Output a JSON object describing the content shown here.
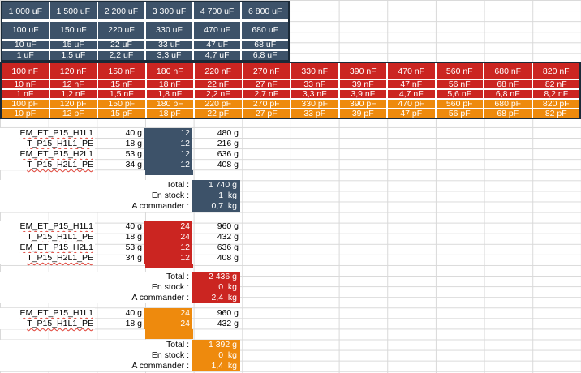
{
  "colors": {
    "navy": "#3D5269",
    "red": "#CB2521",
    "orange": "#EE8A0D",
    "table_border": "#1B2A38",
    "grid_line": "#D9D9D9",
    "squiggle": "#E04338",
    "light_text": "#FFFFFF",
    "dark_text": "#000000"
  },
  "capacitor_table_uf": {
    "style": "navy",
    "rows": [
      [
        "1 000 uF",
        "1 500 uF",
        "2 200 uF",
        "3 300 uF",
        "4 700 uF",
        "6 800 uF"
      ],
      [
        "100 uF",
        "150 uF",
        "220 uF",
        "330 uF",
        "470 uF",
        "680 uF"
      ],
      [
        "10 uF",
        "15 uF",
        "22 uF",
        "33 uF",
        "47 uF",
        "68 uF"
      ],
      [
        "1 uF",
        "1,5 uF",
        "2,2 uF",
        "3,3 uF",
        "4,7 uF",
        "6,8 uF"
      ]
    ]
  },
  "capacitor_table_nf_pf": {
    "row_styles": [
      "red",
      "red",
      "red",
      "orange",
      "orange"
    ],
    "rows": [
      [
        "100 nF",
        "120 nF",
        "150 nF",
        "180 nF",
        "220 nF",
        "270 nF",
        "330 nF",
        "390 nF",
        "470 nF",
        "560 nF",
        "680 nF",
        "820 nF"
      ],
      [
        "10 nF",
        "12 nF",
        "15 nF",
        "18 nF",
        "22 nF",
        "27 nF",
        "33 nF",
        "39 nF",
        "47 nF",
        "56 nF",
        "68 nF",
        "82 nF"
      ],
      [
        "1 nF",
        "1,2 nF",
        "1,5 nF",
        "1,8 nF",
        "2,2 nF",
        "2,7 nF",
        "3,3 nF",
        "3,9 nF",
        "4,7 nF",
        "5,6 nF",
        "6,8 nF",
        "8,2 nF"
      ],
      [
        "100 pF",
        "120 pF",
        "150 pF",
        "180 pF",
        "220 pF",
        "270 pF",
        "330 pF",
        "390 pF",
        "470 pF",
        "560 pF",
        "680 pF",
        "820 pF"
      ],
      [
        "10 pF",
        "12 pF",
        "15 pF",
        "18 pF",
        "22 pF",
        "27 pF",
        "33 pF",
        "39 pF",
        "47 pF",
        "56 pF",
        "68 pF",
        "82 pF"
      ]
    ]
  },
  "groups": [
    {
      "id": "group-1",
      "color": "navy",
      "parts": [
        {
          "name": "EM_ET_P15_H1L1",
          "unit_weight": "40 g",
          "qty": "12",
          "total_weight": "480 g"
        },
        {
          "name": "T_P15_H1L1_PE",
          "unit_weight": "18 g",
          "qty": "12",
          "total_weight": "216 g"
        },
        {
          "name": "EM_ET_P15_H2L1",
          "unit_weight": "53 g",
          "qty": "12",
          "total_weight": "636 g"
        },
        {
          "name": "T_P15_H2L1_PE",
          "unit_weight": "34 g",
          "qty": "12",
          "total_weight": "408 g"
        }
      ],
      "summary": {
        "rows": [
          {
            "label": "Total :",
            "value": "1 740 g"
          },
          {
            "label": "En stock :",
            "value": "1  kg"
          },
          {
            "label": "A commander :",
            "value": "0,7  kg"
          }
        ]
      }
    },
    {
      "id": "group-2",
      "color": "red",
      "parts": [
        {
          "name": "EM_ET_P15_H1L1",
          "unit_weight": "40 g",
          "qty": "24",
          "total_weight": "960 g"
        },
        {
          "name": "T_P15_H1L1_PE",
          "unit_weight": "18 g",
          "qty": "24",
          "total_weight": "432 g"
        },
        {
          "name": "EM_ET_P15_H2L1",
          "unit_weight": "53 g",
          "qty": "12",
          "total_weight": "636 g"
        },
        {
          "name": "T_P15_H2L1_PE",
          "unit_weight": "34 g",
          "qty": "12",
          "total_weight": "408 g"
        }
      ],
      "summary": {
        "rows": [
          {
            "label": "Total :",
            "value": "2 436 g"
          },
          {
            "label": "En stock :",
            "value": "0  kg"
          },
          {
            "label": "A commander :",
            "value": "2,4  kg"
          }
        ]
      }
    },
    {
      "id": "group-3",
      "color": "orange",
      "parts": [
        {
          "name": "EM_ET_P15_H1L1",
          "unit_weight": "40 g",
          "qty": "24",
          "total_weight": "960 g"
        },
        {
          "name": "T_P15_H1L1_PE",
          "unit_weight": "18 g",
          "qty": "24",
          "total_weight": "432 g"
        }
      ],
      "summary": {
        "rows": [
          {
            "label": "Total :",
            "value": "1 392 g"
          },
          {
            "label": "En stock :",
            "value": "0  kg"
          },
          {
            "label": "A commander :",
            "value": "1,4  kg"
          }
        ]
      }
    }
  ]
}
